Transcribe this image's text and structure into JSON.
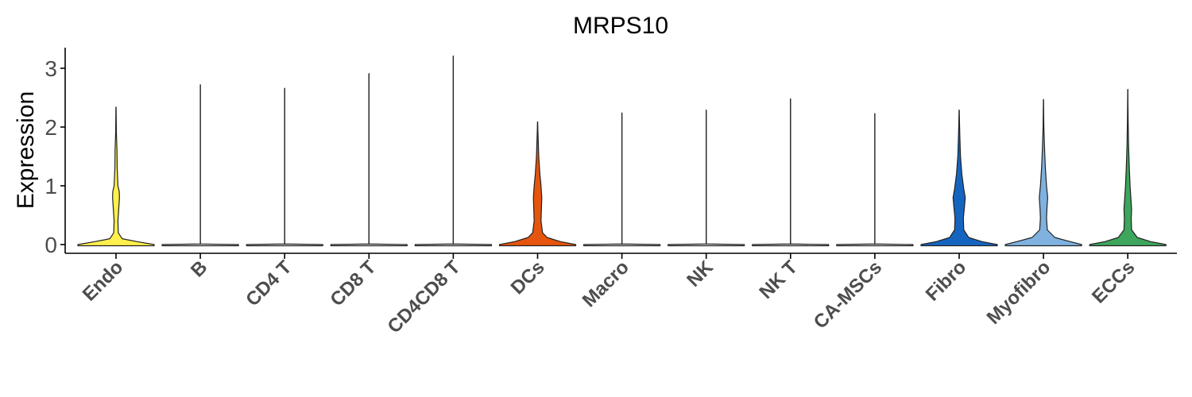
{
  "chart_data": {
    "type": "violin",
    "title": "MRPS10",
    "xlabel": "",
    "ylabel": "Expression",
    "ylim": [
      -0.15,
      3.35
    ],
    "yticks": [
      0,
      1,
      2,
      3
    ],
    "grid": false,
    "legend": "none",
    "categories": [
      {
        "label": "Endo",
        "max": 2.34,
        "color": "#FFF04D",
        "density": [
          [
            0.0,
            1.0
          ],
          [
            0.05,
            0.55
          ],
          [
            0.1,
            0.16
          ],
          [
            0.2,
            0.06
          ],
          [
            0.4,
            0.05
          ],
          [
            0.6,
            0.07
          ],
          [
            0.8,
            0.09
          ],
          [
            0.9,
            0.085
          ],
          [
            1.0,
            0.05
          ],
          [
            1.3,
            0.03
          ],
          [
            1.6,
            0.025
          ],
          [
            1.9,
            0.01
          ],
          [
            2.34,
            0.0
          ]
        ]
      },
      {
        "label": "B",
        "max": 2.72,
        "color": "#E8E8E8",
        "density": [
          [
            0.0,
            1.0
          ],
          [
            0.01,
            0.0
          ],
          [
            2.72,
            0.0
          ]
        ]
      },
      {
        "label": "CD4 T",
        "max": 2.66,
        "color": "#E8E8E8",
        "density": [
          [
            0.0,
            1.0
          ],
          [
            0.01,
            0.0
          ],
          [
            2.66,
            0.0
          ]
        ]
      },
      {
        "label": "CD8 T",
        "max": 2.91,
        "color": "#E8E8E8",
        "density": [
          [
            0.0,
            1.0
          ],
          [
            0.01,
            0.0
          ],
          [
            2.91,
            0.0
          ]
        ]
      },
      {
        "label": "CD4CD8 T",
        "max": 3.21,
        "color": "#E8E8E8",
        "density": [
          [
            0.0,
            1.0
          ],
          [
            0.01,
            0.0
          ],
          [
            3.21,
            0.0
          ]
        ]
      },
      {
        "label": "DCs",
        "max": 2.09,
        "color": "#E6550D",
        "density": [
          [
            0.0,
            1.0
          ],
          [
            0.05,
            0.6
          ],
          [
            0.12,
            0.25
          ],
          [
            0.2,
            0.13
          ],
          [
            0.4,
            0.09
          ],
          [
            0.6,
            0.1
          ],
          [
            0.8,
            0.11
          ],
          [
            1.0,
            0.09
          ],
          [
            1.2,
            0.06
          ],
          [
            1.5,
            0.03
          ],
          [
            1.8,
            0.015
          ],
          [
            2.09,
            0.0
          ]
        ]
      },
      {
        "label": "Macro",
        "max": 2.24,
        "color": "#E8E8E8",
        "density": [
          [
            0.0,
            1.0
          ],
          [
            0.01,
            0.0
          ],
          [
            2.24,
            0.0
          ]
        ]
      },
      {
        "label": "NK",
        "max": 2.29,
        "color": "#E8E8E8",
        "density": [
          [
            0.0,
            1.0
          ],
          [
            0.01,
            0.0
          ],
          [
            2.29,
            0.0
          ]
        ]
      },
      {
        "label": "NK T",
        "max": 2.48,
        "color": "#E8E8E8",
        "density": [
          [
            0.0,
            1.0
          ],
          [
            0.01,
            0.0
          ],
          [
            2.48,
            0.0
          ]
        ]
      },
      {
        "label": "CA-MSCs",
        "max": 2.23,
        "color": "#E8E8E8",
        "density": [
          [
            0.0,
            1.0
          ],
          [
            0.01,
            0.0
          ],
          [
            2.23,
            0.0
          ]
        ]
      },
      {
        "label": "Fibro",
        "max": 2.29,
        "color": "#1565C0",
        "density": [
          [
            0.0,
            1.0
          ],
          [
            0.05,
            0.6
          ],
          [
            0.12,
            0.25
          ],
          [
            0.25,
            0.12
          ],
          [
            0.45,
            0.11
          ],
          [
            0.65,
            0.14
          ],
          [
            0.8,
            0.16
          ],
          [
            0.95,
            0.12
          ],
          [
            1.2,
            0.07
          ],
          [
            1.5,
            0.035
          ],
          [
            1.8,
            0.02
          ],
          [
            2.29,
            0.0
          ]
        ]
      },
      {
        "label": "Myofibro",
        "max": 2.47,
        "color": "#7FB2DE",
        "density": [
          [
            0.0,
            1.0
          ],
          [
            0.05,
            0.7
          ],
          [
            0.12,
            0.3
          ],
          [
            0.25,
            0.1
          ],
          [
            0.45,
            0.08
          ],
          [
            0.6,
            0.09
          ],
          [
            0.8,
            0.11
          ],
          [
            1.0,
            0.08
          ],
          [
            1.3,
            0.05
          ],
          [
            1.6,
            0.03
          ],
          [
            2.0,
            0.01
          ],
          [
            2.47,
            0.0
          ]
        ]
      },
      {
        "label": "ECCs",
        "max": 2.64,
        "color": "#3DA55C",
        "density": [
          [
            0.0,
            1.0
          ],
          [
            0.05,
            0.6
          ],
          [
            0.12,
            0.25
          ],
          [
            0.25,
            0.1
          ],
          [
            0.45,
            0.09
          ],
          [
            0.6,
            0.1
          ],
          [
            0.8,
            0.08
          ],
          [
            1.0,
            0.06
          ],
          [
            1.3,
            0.04
          ],
          [
            1.7,
            0.02
          ],
          [
            2.1,
            0.01
          ],
          [
            2.64,
            0.0
          ]
        ]
      }
    ]
  }
}
